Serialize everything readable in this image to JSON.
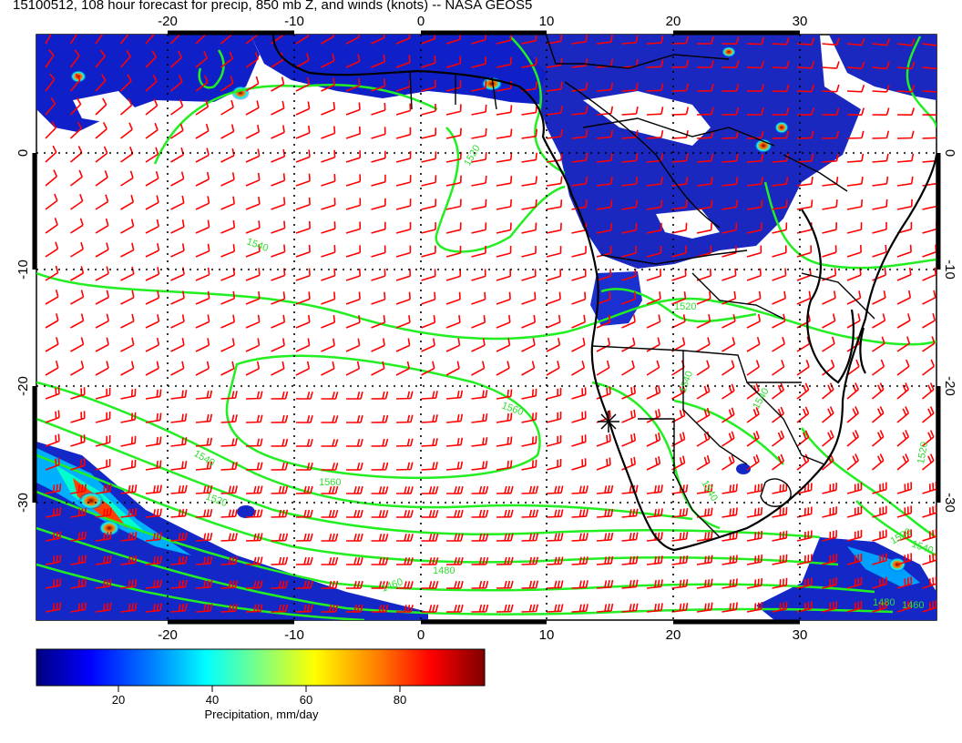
{
  "title": "15100512, 108 hour forecast for precip, 850 mb Z, and winds (knots) -- NASA GEOS5",
  "map": {
    "lon_range": [
      -30,
      41
    ],
    "lat_range": [
      -40,
      11
    ],
    "lon_ticks": [
      -20,
      -10,
      0,
      10,
      20,
      30
    ],
    "lat_ticks": [
      0,
      -10,
      -20,
      -30
    ],
    "contour_labels": [
      "1520",
      "1540",
      "1560",
      "1560",
      "1540",
      "1520",
      "1520",
      "1540",
      "1540",
      "1540",
      "1520",
      "1480",
      "1460",
      "1540",
      "1520",
      "1480",
      "1460"
    ],
    "marker": "plus-star at Namibian coast",
    "colors": {
      "wind_barbs": "#ff0000",
      "contours": "#22ee22",
      "coastlines": "#000000",
      "grid": "#000000"
    }
  },
  "colorbar": {
    "label": "Precipitation, mm/day",
    "ticks": [
      "20",
      "40",
      "60",
      "80"
    ],
    "colors": [
      "#00007f",
      "#0000ff",
      "#0080ff",
      "#00ffff",
      "#80ff80",
      "#ffff00",
      "#ff8000",
      "#ff0000",
      "#7f0000"
    ]
  }
}
